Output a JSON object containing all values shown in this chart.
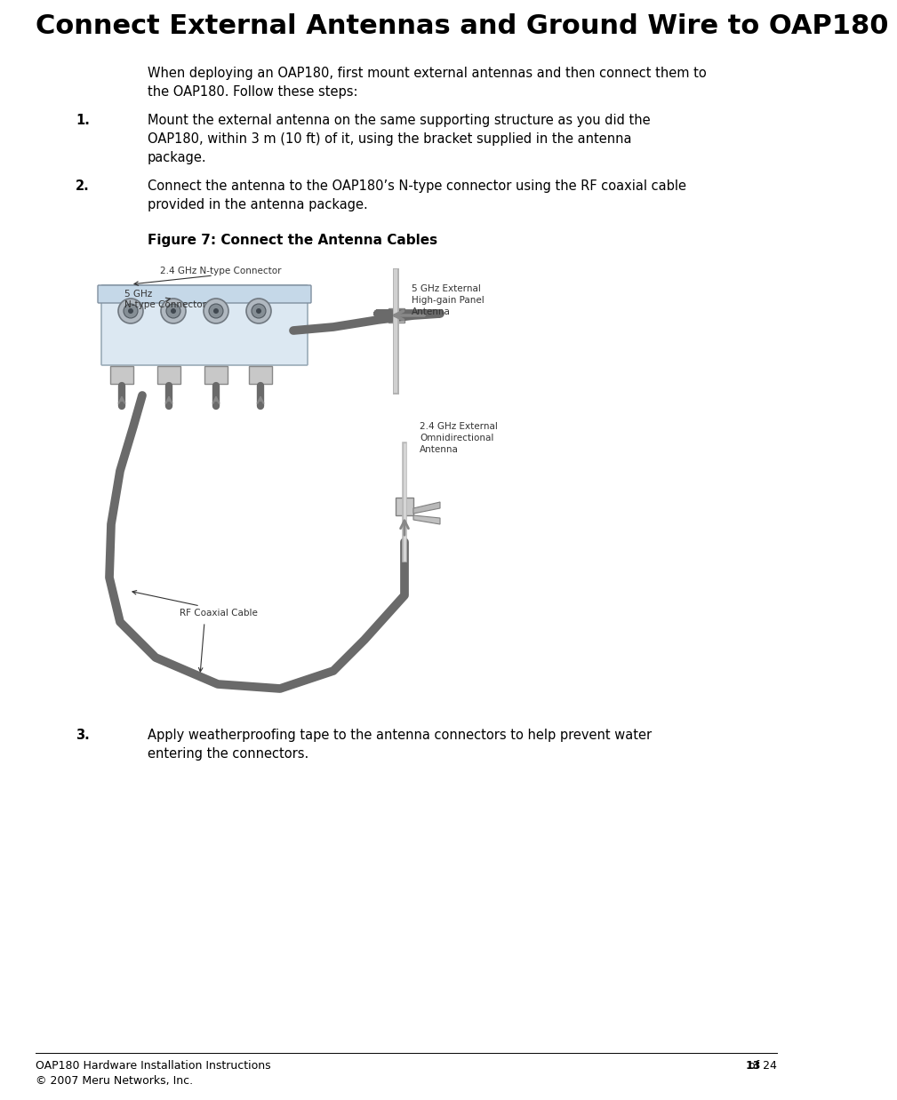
{
  "title": "Connect External Antennas and Ground Wire to OAP180",
  "background_color": "#ffffff",
  "title_color": "#000000",
  "title_fontsize": 22,
  "body_fontsize": 10.5,
  "figure_caption": "Figure 7: Connect the Antenna Cables",
  "figure_caption_fontsize": 11,
  "intro_text": "When deploying an OAP180, first mount external antennas and then connect them to\nthe OAP180. Follow these steps:",
  "step1_bold": "1.",
  "step1_text": "Mount the external antenna on the same supporting structure as you did the\nOAP180, within 3 m (10 ft) of it, using the bracket supplied in the antenna\npackage.",
  "step2_bold": "2.",
  "step2_text": "Connect the antenna to the OAP180’s N-type connector using the RF coaxial cable\nprovided in the antenna package.",
  "step3_bold": "3.",
  "step3_text": "Apply weatherproofing tape to the antenna connectors to help prevent water\nentering the connectors.",
  "footer_left": "OAP180 Hardware Installation Instructions",
  "footer_right_normal": " of 24",
  "footer_right_bold": "13",
  "footer_copyright": "© 2007 Meru Networks, Inc.",
  "footer_fontsize": 9,
  "diagram_label_24ghz_connector": "2.4 GHz N-type Connector",
  "diagram_label_5ghz_connector": "5 GHz\nN-type Connector",
  "diagram_label_5ghz_antenna": "5 GHz External\nHigh-gain Panel\nAntenna",
  "diagram_label_24ghz_antenna": "2.4 GHz External\nOmnidirectional\nAntenna",
  "diagram_label_rf_cable": "RF Coaxial Cable",
  "diagram_color_cable": "#6a6a6a",
  "cable_lw": 7
}
